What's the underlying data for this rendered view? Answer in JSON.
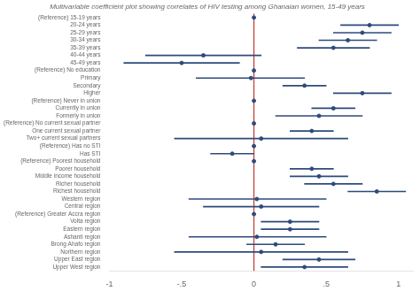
{
  "chart_data": {
    "type": "scatter",
    "orientation": "horizontal",
    "title": "Multivariable coefficient plot showing correlates of HIV testing among Ghanaian women, 15-49 years",
    "categories": [
      "(Reference) 15-19 years",
      "20-24 years",
      "25-29 years",
      "30-34 years",
      "35-39 years",
      "40-44 years",
      "45-49 years",
      "(Reference) No education",
      "Primary",
      "Secondary",
      "Higher",
      "(Reference) Never in union",
      "Currently in union",
      "Formerly in union",
      "(Reference) No current sexual partner",
      "One current sexual partner",
      "Two+ current sexual partners",
      "(Reference) Has no STI",
      "Has STI",
      "(Reference) Poorest household",
      "Poorer household",
      "Middle income household",
      "Richer household",
      "Richest household",
      "Western region",
      "Central region",
      "(Reference) Greater Accra region",
      "Volta region",
      "Eastern region",
      "Ashanti region",
      "Brong Ahafo region",
      "Northern region",
      "Upper East region",
      "Upper West region"
    ],
    "values": [
      0.0,
      0.8,
      0.75,
      0.65,
      0.55,
      -0.35,
      -0.5,
      0.0,
      -0.02,
      0.35,
      0.75,
      0.0,
      0.55,
      0.45,
      0.0,
      0.4,
      0.05,
      0.0,
      -0.15,
      0.0,
      0.4,
      0.45,
      0.55,
      0.85,
      0.02,
      0.05,
      0.0,
      0.25,
      0.25,
      0.02,
      0.15,
      0.05,
      0.45,
      0.35
    ],
    "ci_low": [
      0.0,
      0.6,
      0.55,
      0.45,
      0.3,
      -0.75,
      -0.9,
      0.0,
      -0.4,
      0.2,
      0.55,
      0.0,
      0.4,
      0.15,
      0.0,
      0.25,
      -0.55,
      0.0,
      -0.3,
      0.0,
      0.25,
      0.25,
      0.35,
      0.65,
      -0.45,
      -0.35,
      0.0,
      0.05,
      0.05,
      -0.45,
      -0.05,
      -0.55,
      0.2,
      0.05
    ],
    "ci_high": [
      0.0,
      1.0,
      0.95,
      0.85,
      0.8,
      0.05,
      -0.1,
      0.0,
      0.35,
      0.5,
      0.95,
      0.0,
      0.7,
      0.75,
      0.0,
      0.55,
      0.65,
      0.0,
      0.0,
      0.0,
      0.55,
      0.65,
      0.75,
      1.05,
      0.5,
      0.45,
      0.0,
      0.45,
      0.45,
      0.5,
      0.35,
      0.65,
      0.7,
      0.65
    ],
    "color": "#2e4a7a",
    "reference_line": {
      "x": 0,
      "color": "#c0392b"
    },
    "xlim": [
      -1.0,
      1.1
    ],
    "xticks": [
      -1,
      {
        "value": -0.5,
        "label": "-.5"
      },
      0,
      {
        "value": 0.5,
        "label": ".5"
      },
      1
    ],
    "grid": false
  }
}
